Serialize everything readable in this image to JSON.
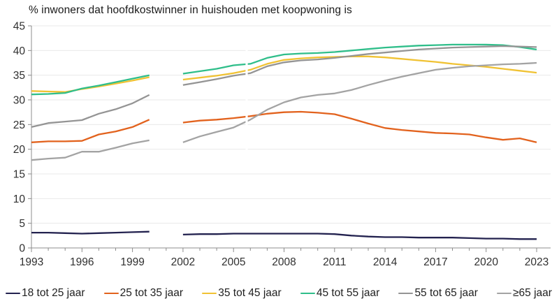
{
  "page": {
    "background": "#ffffff"
  },
  "chart_data": {
    "type": "line",
    "title": "% inwoners dat hoofdkostwinner in huishouden met koopwoning is",
    "xlabel": "",
    "ylabel": "",
    "ylim": [
      0,
      45
    ],
    "yticks": [
      0,
      5,
      10,
      15,
      20,
      25,
      30,
      35,
      40,
      45
    ],
    "xticks": [
      1993,
      1996,
      1999,
      2002,
      2005,
      2008,
      2011,
      2014,
      2017,
      2020,
      2023
    ],
    "x_range": [
      1993,
      2023
    ],
    "grid": "horizontal",
    "legend_position": "bottom",
    "data_gaps": {
      "missing_year": 2001,
      "small_series_break_at": 2006
    },
    "colors": {
      "axis": "#8c8c8c",
      "gridline": "#e9e9e9",
      "tick_label": "#303030",
      "title_text": "#1a1a1a"
    },
    "series": [
      {
        "name": "18 tot 25 jaar",
        "color": "#23224f",
        "segments": [
          {
            "years": [
              1993,
              1994,
              1995,
              1996,
              1997,
              1998,
              1999,
              2000
            ],
            "values": [
              3.1,
              3.1,
              3.0,
              2.9,
              3.0,
              3.1,
              3.2,
              3.3
            ]
          },
          {
            "years": [
              2002,
              2003,
              2004,
              2005,
              2006,
              2007,
              2008,
              2009,
              2010,
              2011,
              2012,
              2013,
              2014,
              2015,
              2016,
              2017,
              2018,
              2019,
              2020,
              2021,
              2022,
              2023
            ],
            "values": [
              2.7,
              2.8,
              2.8,
              2.9,
              2.9,
              2.9,
              2.9,
              2.9,
              2.9,
              2.8,
              2.5,
              2.3,
              2.2,
              2.2,
              2.1,
              2.1,
              2.1,
              2.0,
              1.9,
              1.9,
              1.8,
              1.8
            ]
          }
        ]
      },
      {
        "name": "25 tot 35 jaar",
        "color": "#e2621d",
        "segments": [
          {
            "years": [
              1993,
              1994,
              1995,
              1996,
              1997,
              1998,
              1999,
              2000
            ],
            "values": [
              21.4,
              21.6,
              21.6,
              21.7,
              23.0,
              23.6,
              24.5,
              26.0
            ]
          },
          {
            "years": [
              2002,
              2003,
              2004,
              2005,
              2006,
              2007,
              2008,
              2009,
              2010,
              2011,
              2012,
              2013,
              2014,
              2015,
              2016,
              2017,
              2018,
              2019,
              2020,
              2021,
              2022,
              2023
            ],
            "values": [
              25.4,
              25.8,
              26.0,
              26.3,
              26.7,
              27.2,
              27.5,
              27.6,
              27.4,
              27.1,
              26.2,
              25.2,
              24.3,
              23.9,
              23.6,
              23.3,
              23.2,
              23.0,
              22.4,
              21.9,
              22.2,
              21.4
            ]
          }
        ]
      },
      {
        "name": "35 tot 45 jaar",
        "color": "#f0c233",
        "segments": [
          {
            "years": [
              1993,
              1994,
              1995,
              1996,
              1997,
              1998,
              1999,
              2000
            ],
            "values": [
              31.8,
              31.7,
              31.6,
              32.2,
              32.7,
              33.3,
              33.9,
              34.6
            ]
          },
          {
            "years": [
              2002,
              2003,
              2004,
              2005,
              2006,
              2007,
              2008,
              2009,
              2010,
              2011,
              2012,
              2013,
              2014,
              2015,
              2016,
              2017,
              2018,
              2019,
              2020,
              2021,
              2022,
              2023
            ],
            "values": [
              34.1,
              34.5,
              34.9,
              35.4,
              36.1,
              37.3,
              38.1,
              38.4,
              38.6,
              38.7,
              38.8,
              38.8,
              38.6,
              38.3,
              38.0,
              37.7,
              37.3,
              37.0,
              36.7,
              36.3,
              35.9,
              35.5
            ]
          }
        ]
      },
      {
        "name": "45 tot 55 jaar",
        "color": "#2fbe8a",
        "segments": [
          {
            "years": [
              1993,
              1994,
              1995,
              1996,
              1997,
              1998,
              1999,
              2000
            ],
            "values": [
              31.1,
              31.2,
              31.4,
              32.3,
              32.9,
              33.6,
              34.3,
              35.0
            ]
          },
          {
            "years": [
              2002,
              2003,
              2004,
              2005,
              2006,
              2007,
              2008,
              2009,
              2010,
              2011,
              2012,
              2013,
              2014,
              2015,
              2016,
              2017,
              2018,
              2019,
              2020,
              2021,
              2022,
              2023
            ],
            "values": [
              35.3,
              35.8,
              36.3,
              37.0,
              37.3,
              38.5,
              39.2,
              39.4,
              39.5,
              39.7,
              40.0,
              40.3,
              40.6,
              40.8,
              41.0,
              41.1,
              41.2,
              41.2,
              41.2,
              41.1,
              40.7,
              40.2
            ]
          }
        ]
      },
      {
        "name": "55 tot 65 jaar",
        "color": "#949494",
        "segments": [
          {
            "years": [
              1993,
              1994,
              1995,
              1996,
              1997,
              1998,
              1999,
              2000
            ],
            "values": [
              24.5,
              25.3,
              25.6,
              25.9,
              27.2,
              28.1,
              29.3,
              31.0
            ]
          },
          {
            "years": [
              2002,
              2003,
              2004,
              2005,
              2006,
              2007,
              2008,
              2009,
              2010,
              2011,
              2012,
              2013,
              2014,
              2015,
              2016,
              2017,
              2018,
              2019,
              2020,
              2021,
              2022,
              2023
            ],
            "values": [
              33.0,
              33.6,
              34.2,
              34.9,
              35.4,
              36.8,
              37.6,
              38.0,
              38.2,
              38.5,
              38.9,
              39.3,
              39.6,
              39.9,
              40.2,
              40.4,
              40.6,
              40.7,
              40.8,
              40.9,
              40.8,
              40.7
            ]
          }
        ]
      },
      {
        "name": "≥65 jaar",
        "color": "#a3a3a3",
        "segments": [
          {
            "years": [
              1993,
              1994,
              1995,
              1996,
              1997,
              1998,
              1999,
              2000
            ],
            "values": [
              17.8,
              18.1,
              18.3,
              19.5,
              19.5,
              20.3,
              21.2,
              21.8
            ]
          },
          {
            "years": [
              2002,
              2003,
              2004,
              2005,
              2006,
              2007,
              2008,
              2009,
              2010,
              2011,
              2012,
              2013,
              2014,
              2015,
              2016,
              2017,
              2018,
              2019,
              2020,
              2021,
              2022,
              2023
            ],
            "values": [
              21.4,
              22.6,
              23.5,
              24.4,
              26.0,
              28.0,
              29.5,
              30.5,
              31.0,
              31.3,
              32.0,
              33.0,
              33.9,
              34.7,
              35.4,
              36.1,
              36.5,
              36.8,
              37.0,
              37.2,
              37.3,
              37.5
            ]
          }
        ]
      }
    ]
  }
}
